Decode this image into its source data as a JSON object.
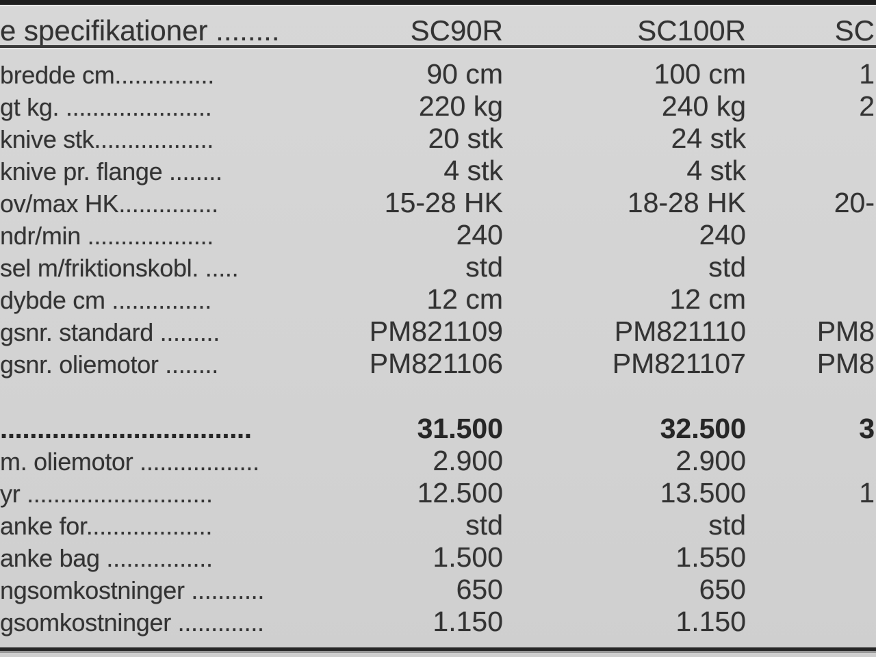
{
  "colors": {
    "background": "#d4d4d4",
    "text": "#333333",
    "rule_dark": "#1e1e1e",
    "rule_mid": "#3a3a3a",
    "rule_bottom": "#262626"
  },
  "table": {
    "header": {
      "label": "e specifikationer ........",
      "col1": "SC90R",
      "col2": "SC100R",
      "col3": "SC"
    },
    "rows": [
      {
        "label": "bredde cm...............",
        "col1": "90 cm",
        "col2": "100 cm",
        "col3": "1"
      },
      {
        "label": "gt kg. ......................",
        "col1": "220 kg",
        "col2": "240 kg",
        "col3": "2"
      },
      {
        "label": "knive stk..................",
        "col1": "20 stk",
        "col2": "24 stk",
        "col3": ""
      },
      {
        "label": "knive pr. flange ........",
        "col1": "4 stk",
        "col2": "4 stk",
        "col3": ""
      },
      {
        "label": "ov/max HK...............",
        "col1": "15-28 HK",
        "col2": "18-28 HK",
        "col3": "20-"
      },
      {
        "label": "ndr/min ...................",
        "col1": "240",
        "col2": "240",
        "col3": ""
      },
      {
        "label": "sel m/friktionskobl. .....",
        "col1": "std",
        "col2": "std",
        "col3": ""
      },
      {
        "label": "dybde cm ...............",
        "col1": "12 cm",
        "col2": "12 cm",
        "col3": ""
      },
      {
        "label": "gsnr. standard .........",
        "col1": "PM821109",
        "col2": "PM821110",
        "col3": "PM8"
      },
      {
        "label": "gsnr. oliemotor ........",
        "col1": "PM821106",
        "col2": "PM821107",
        "col3": "PM8"
      },
      {
        "spacer": true
      },
      {
        "label": "..................................",
        "col1": "31.500",
        "col2": "32.500",
        "col3": "3",
        "bold": true
      },
      {
        "label": "m. oliemotor ..................",
        "col1": "2.900",
        "col2": "2.900",
        "col3": ""
      },
      {
        "label": "yr ............................",
        "col1": "12.500",
        "col2": "13.500",
        "col3": "1"
      },
      {
        "label": "anke for...................",
        "col1": "std",
        "col2": "std",
        "col3": ""
      },
      {
        "label": "anke bag ................",
        "col1": "1.500",
        "col2": "1.550",
        "col3": ""
      },
      {
        "label": "ngsomkostninger ...........",
        "col1": "650",
        "col2": "650",
        "col3": ""
      },
      {
        "label": "gsomkostninger .............",
        "col1": "1.150",
        "col2": "1.150",
        "col3": ""
      }
    ]
  }
}
